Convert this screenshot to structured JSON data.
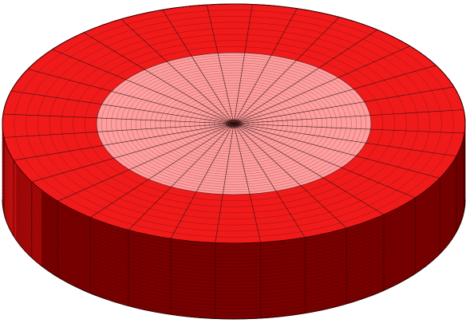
{
  "model": {
    "shape": "cylindrical-disk",
    "view": "isometric",
    "mesh": {
      "radial_spokes": 32,
      "inner_ring_subdivisions": 28,
      "outer_ring_subdivisions": 8,
      "side_layers": 22,
      "inner_region_radius_fraction": 0.5
    },
    "colors": {
      "background": "#ffffff",
      "inner_region_fill": "#ff9e9e",
      "outer_ring_fill": "#f01a1a",
      "side_light_fill": "#d01010",
      "side_dark_fill": "#7a0000",
      "spoke_line": "#2a1010",
      "ring_line_inner": "#a84848",
      "ring_line_outer": "#8a0a0a",
      "side_layer_line": "#3a0000",
      "highlight_arc": "#ffd8d8"
    },
    "parts": {
      "inner_region": "inner-region",
      "outer_ring": "outer-ring",
      "side_wall": "side-wall"
    }
  }
}
